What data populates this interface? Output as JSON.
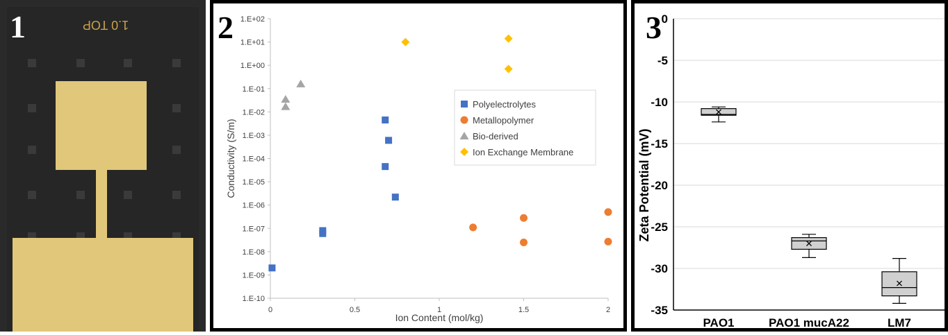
{
  "panel_labels": [
    "1",
    "2",
    "3"
  ],
  "photo": {
    "engraving": "1.0 TOP",
    "colors": {
      "background": "#262626",
      "gold": "#e0c77a",
      "grid_square": "#3a3a3a"
    }
  },
  "chart_data": [
    {
      "type": "scatter",
      "xlabel": "Ion Content (mol/kg)",
      "ylabel": "Conductivity (S/m)",
      "xlim": [
        0,
        2
      ],
      "ylim_log10": [
        -10,
        2
      ],
      "log_y": true,
      "x_ticks": [
        "0",
        "0.5",
        "1",
        "1.5",
        "2"
      ],
      "x_tick_values": [
        0,
        0.5,
        1,
        1.5,
        2
      ],
      "y_ticks": [
        "1.E-10",
        "1.E-09",
        "1.E-08",
        "1.E-07",
        "1.E-06",
        "1.E-05",
        "1.E-04",
        "1.E-03",
        "1.E-02",
        "1.E-01",
        "1.E+00",
        "1.E+01",
        "1.E+02"
      ],
      "y_tick_exponents": [
        -10,
        -9,
        -8,
        -7,
        -6,
        -5,
        -4,
        -3,
        -2,
        -1,
        0,
        1,
        2
      ],
      "grid": false,
      "legend_placement": "right",
      "series": [
        {
          "name": "Polyelectrolytes",
          "marker": "square",
          "color": "#4472c4",
          "points": [
            [
              0.01,
              2e-09
            ],
            [
              0.31,
              8e-08
            ],
            [
              0.31,
              6e-08
            ],
            [
              0.68,
              0.0045
            ],
            [
              0.7,
              0.0006
            ],
            [
              0.68,
              4.5e-05
            ],
            [
              0.74,
              2.2e-06
            ]
          ]
        },
        {
          "name": "Metallopolymer",
          "marker": "circle",
          "color": "#ed7d31",
          "points": [
            [
              1.2,
              1.1e-07
            ],
            [
              1.5,
              2.8e-07
            ],
            [
              1.5,
              2.5e-08
            ],
            [
              2.0,
              5e-07
            ],
            [
              2.0,
              2.7e-08
            ]
          ]
        },
        {
          "name": "Bio-derived",
          "marker": "triangle",
          "color": "#a5a5a5",
          "points": [
            [
              0.09,
              0.035
            ],
            [
              0.09,
              0.017
            ],
            [
              0.18,
              0.16
            ]
          ]
        },
        {
          "name": "Ion Exchange Membrane",
          "marker": "diamond",
          "color": "#ffc000",
          "points": [
            [
              0.8,
              10
            ],
            [
              1.41,
              14
            ],
            [
              1.41,
              0.7
            ]
          ]
        }
      ]
    },
    {
      "type": "box",
      "ylabel": "Zeta Potential (mV)",
      "ylim": [
        -35,
        0
      ],
      "y_ticks": [
        0,
        -5,
        -10,
        -15,
        -20,
        -25,
        -30,
        -35
      ],
      "categories": [
        "PAO1",
        "PAO1 mucA22",
        "LM7"
      ],
      "grid": true,
      "boxes": [
        {
          "min": -12.4,
          "q1": -11.6,
          "median": -11.5,
          "q3": -10.8,
          "max": -10.6,
          "mean": -11.2
        },
        {
          "min": -28.7,
          "q1": -27.7,
          "median": -26.7,
          "q3": -26.3,
          "max": -25.9,
          "mean": -27.0
        },
        {
          "min": -34.2,
          "q1": -33.3,
          "median": -32.3,
          "q3": -30.4,
          "max": -28.8,
          "mean": -31.8
        }
      ],
      "colors": {
        "box_fill": "#d0d0d0",
        "box_stroke": "#000000",
        "grid": "#d9d9d9"
      }
    }
  ]
}
